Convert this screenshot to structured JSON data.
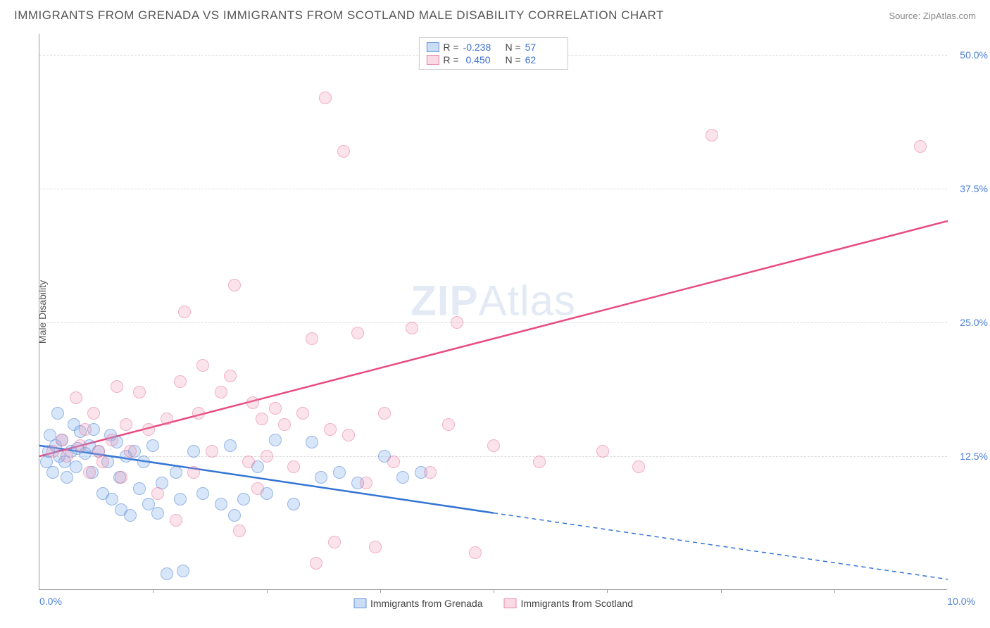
{
  "title": "IMMIGRANTS FROM GRENADA VS IMMIGRANTS FROM SCOTLAND MALE DISABILITY CORRELATION CHART",
  "source": "Source: ZipAtlas.com",
  "watermark_prefix": "ZIP",
  "watermark_suffix": "Atlas",
  "ylabel": "Male Disability",
  "chart": {
    "type": "scatter",
    "xlim": [
      0,
      10
    ],
    "ylim": [
      0,
      52
    ],
    "yticks": [
      12.5,
      25.0,
      37.5,
      50.0
    ],
    "ytick_labels": [
      "12.5%",
      "25.0%",
      "37.5%",
      "50.0%"
    ],
    "xtick_left": "0.0%",
    "xtick_right": "10.0%",
    "xtick_marks": [
      1.25,
      2.5,
      3.75,
      5.0,
      6.25,
      7.5,
      8.75
    ],
    "background_color": "#ffffff",
    "grid_color": "#dddddd",
    "series": [
      {
        "key": "grenada",
        "label": "Immigrants from Grenada",
        "color_fill": "rgba(120,170,230,0.4)",
        "color_stroke": "#5082d2",
        "R": "-0.238",
        "N": "57",
        "trend": {
          "x1": 0,
          "y1": 13.5,
          "x2": 5.0,
          "y2": 7.2,
          "x2_ext": 10.0,
          "y2_ext": 1.0,
          "color": "#3374d4"
        },
        "points": [
          [
            0.08,
            12.0
          ],
          [
            0.1,
            13.0
          ],
          [
            0.12,
            14.5
          ],
          [
            0.15,
            11.0
          ],
          [
            0.18,
            13.5
          ],
          [
            0.2,
            16.5
          ],
          [
            0.22,
            12.5
          ],
          [
            0.25,
            14.0
          ],
          [
            0.28,
            12.0
          ],
          [
            0.3,
            10.5
          ],
          [
            0.35,
            13.0
          ],
          [
            0.38,
            15.5
          ],
          [
            0.4,
            11.5
          ],
          [
            0.42,
            13.2
          ],
          [
            0.45,
            14.8
          ],
          [
            0.5,
            12.8
          ],
          [
            0.55,
            13.5
          ],
          [
            0.58,
            11.0
          ],
          [
            0.6,
            15.0
          ],
          [
            0.65,
            13.0
          ],
          [
            0.7,
            9.0
          ],
          [
            0.75,
            12.0
          ],
          [
            0.78,
            14.5
          ],
          [
            0.8,
            8.5
          ],
          [
            0.85,
            13.8
          ],
          [
            0.88,
            10.5
          ],
          [
            0.9,
            7.5
          ],
          [
            0.95,
            12.5
          ],
          [
            1.0,
            7.0
          ],
          [
            1.05,
            13.0
          ],
          [
            1.1,
            9.5
          ],
          [
            1.15,
            12.0
          ],
          [
            1.2,
            8.0
          ],
          [
            1.25,
            13.5
          ],
          [
            1.3,
            7.2
          ],
          [
            1.35,
            10.0
          ],
          [
            1.4,
            1.5
          ],
          [
            1.5,
            11.0
          ],
          [
            1.55,
            8.5
          ],
          [
            1.58,
            1.8
          ],
          [
            1.7,
            13.0
          ],
          [
            1.8,
            9.0
          ],
          [
            2.0,
            8.0
          ],
          [
            2.1,
            13.5
          ],
          [
            2.15,
            7.0
          ],
          [
            2.25,
            8.5
          ],
          [
            2.4,
            11.5
          ],
          [
            2.5,
            9.0
          ],
          [
            2.6,
            14.0
          ],
          [
            2.8,
            8.0
          ],
          [
            3.0,
            13.8
          ],
          [
            3.1,
            10.5
          ],
          [
            3.3,
            11.0
          ],
          [
            3.5,
            10.0
          ],
          [
            3.8,
            12.5
          ],
          [
            4.0,
            10.5
          ],
          [
            4.2,
            11.0
          ]
        ]
      },
      {
        "key": "scotland",
        "label": "Immigrants from Scotland",
        "color_fill": "rgba(240,150,180,0.35)",
        "color_stroke": "#e66e96",
        "R": "0.450",
        "N": "62",
        "trend": {
          "x1": 0,
          "y1": 12.5,
          "x2": 10.0,
          "y2": 34.5,
          "color": "#e84b82"
        },
        "points": [
          [
            0.15,
            13.0
          ],
          [
            0.25,
            14.0
          ],
          [
            0.3,
            12.5
          ],
          [
            0.4,
            18.0
          ],
          [
            0.45,
            13.5
          ],
          [
            0.5,
            15.0
          ],
          [
            0.55,
            11.0
          ],
          [
            0.6,
            16.5
          ],
          [
            0.65,
            13.0
          ],
          [
            0.7,
            12.0
          ],
          [
            0.8,
            14.0
          ],
          [
            0.85,
            19.0
          ],
          [
            0.9,
            10.5
          ],
          [
            0.95,
            15.5
          ],
          [
            1.0,
            13.0
          ],
          [
            1.1,
            18.5
          ],
          [
            1.2,
            15.0
          ],
          [
            1.3,
            9.0
          ],
          [
            1.4,
            16.0
          ],
          [
            1.5,
            6.5
          ],
          [
            1.55,
            19.5
          ],
          [
            1.6,
            26.0
          ],
          [
            1.7,
            11.0
          ],
          [
            1.75,
            16.5
          ],
          [
            1.8,
            21.0
          ],
          [
            1.9,
            13.0
          ],
          [
            2.0,
            18.5
          ],
          [
            2.1,
            20.0
          ],
          [
            2.15,
            28.5
          ],
          [
            2.2,
            5.5
          ],
          [
            2.3,
            12.0
          ],
          [
            2.35,
            17.5
          ],
          [
            2.4,
            9.5
          ],
          [
            2.45,
            16.0
          ],
          [
            2.5,
            12.5
          ],
          [
            2.6,
            17.0
          ],
          [
            2.7,
            15.5
          ],
          [
            2.8,
            11.5
          ],
          [
            2.9,
            16.5
          ],
          [
            3.0,
            23.5
          ],
          [
            3.15,
            46.0
          ],
          [
            3.2,
            15.0
          ],
          [
            3.25,
            4.5
          ],
          [
            3.35,
            41.0
          ],
          [
            3.4,
            14.5
          ],
          [
            3.5,
            24.0
          ],
          [
            3.6,
            10.0
          ],
          [
            3.7,
            4.0
          ],
          [
            3.8,
            16.5
          ],
          [
            3.9,
            12.0
          ],
          [
            4.1,
            24.5
          ],
          [
            4.3,
            11.0
          ],
          [
            4.5,
            15.5
          ],
          [
            4.6,
            25.0
          ],
          [
            4.8,
            3.5
          ],
          [
            5.0,
            13.5
          ],
          [
            5.5,
            12.0
          ],
          [
            6.2,
            13.0
          ],
          [
            6.6,
            11.5
          ],
          [
            7.4,
            42.5
          ],
          [
            9.7,
            41.5
          ],
          [
            3.05,
            2.5
          ]
        ]
      }
    ]
  }
}
